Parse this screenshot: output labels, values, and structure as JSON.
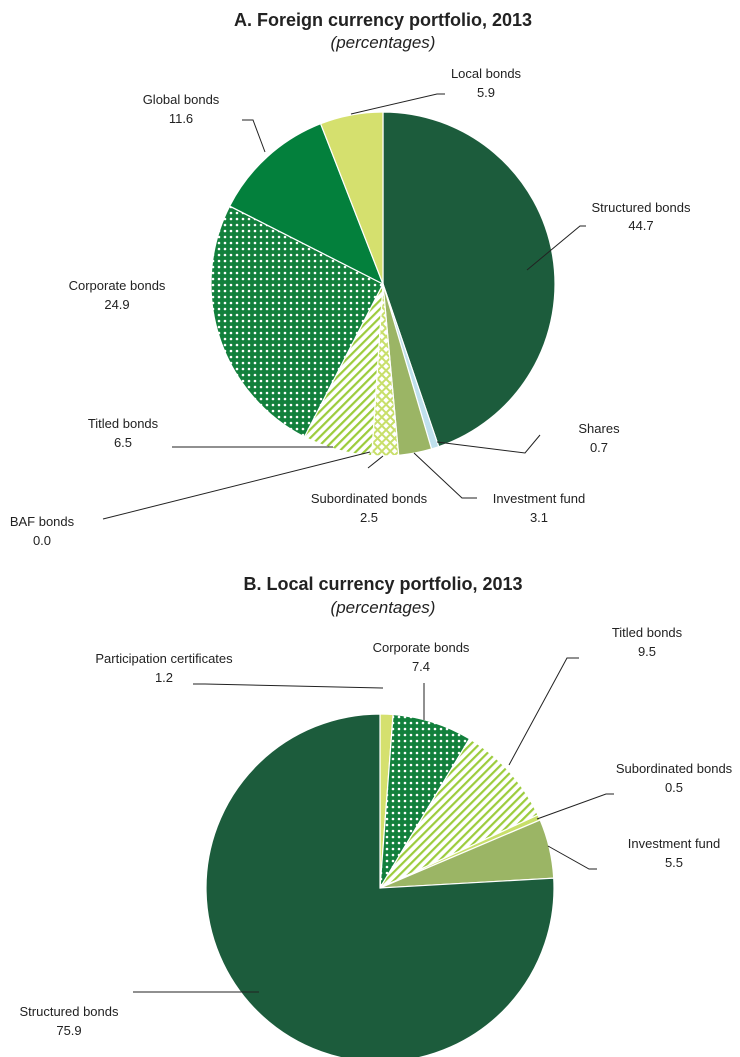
{
  "chart_data": [
    {
      "type": "pie",
      "title": "A. Foreign currency portfolio, 2013",
      "subtitle": "(percentages)",
      "slices": [
        {
          "name": "Structured bonds",
          "value": 44.7,
          "label": "44.7",
          "color": "#1c5c3c",
          "fill": "solid"
        },
        {
          "name": "Shares",
          "value": 0.7,
          "label": "0.7",
          "color": "#bfe0ec",
          "fill": "solid"
        },
        {
          "name": "Investment fund",
          "value": 3.1,
          "label": "3.1",
          "color": "#9bb565",
          "fill": "solid"
        },
        {
          "name": "Subordinated bonds",
          "value": 2.5,
          "label": "2.5",
          "color": "#c8df6a",
          "fill": "crosshatch"
        },
        {
          "name": "BAF bonds",
          "value": 0.0,
          "label": "0.0",
          "color": "#c8df6a",
          "fill": "solid"
        },
        {
          "name": "Titled bonds",
          "value": 6.5,
          "label": "6.5",
          "color": "#9ccc3c",
          "fill": "diagonal"
        },
        {
          "name": "Corporate bonds",
          "value": 24.9,
          "label": "24.9",
          "color": "#12803c",
          "fill": "dots"
        },
        {
          "name": "Global bonds",
          "value": 11.6,
          "label": "11.6",
          "color": "#03803c",
          "fill": "solid"
        },
        {
          "name": "Local bonds",
          "value": 5.9,
          "label": "5.9",
          "color": "#d5e06e",
          "fill": "solid"
        }
      ]
    },
    {
      "type": "pie",
      "title": "B. Local currency portfolio, 2013",
      "subtitle": "(percentages)",
      "slices": [
        {
          "name": "Participation certificates",
          "value": 1.2,
          "label": "1.2",
          "color": "#d5e06e",
          "fill": "solid"
        },
        {
          "name": "Corporate bonds",
          "value": 7.4,
          "label": "7.4",
          "color": "#12803c",
          "fill": "dots"
        },
        {
          "name": "Titled bonds",
          "value": 9.5,
          "label": "9.5",
          "color": "#9ccc3c",
          "fill": "diagonal"
        },
        {
          "name": "Subordinated bonds",
          "value": 0.5,
          "label": "0.5",
          "color": "#c8df6a",
          "fill": "solid"
        },
        {
          "name": "Investment fund",
          "value": 5.5,
          "label": "5.5",
          "color": "#9bb565",
          "fill": "solid"
        },
        {
          "name": "Structured bonds",
          "value": 75.9,
          "label": "75.9",
          "color": "#1c5c3c",
          "fill": "solid"
        }
      ]
    }
  ]
}
